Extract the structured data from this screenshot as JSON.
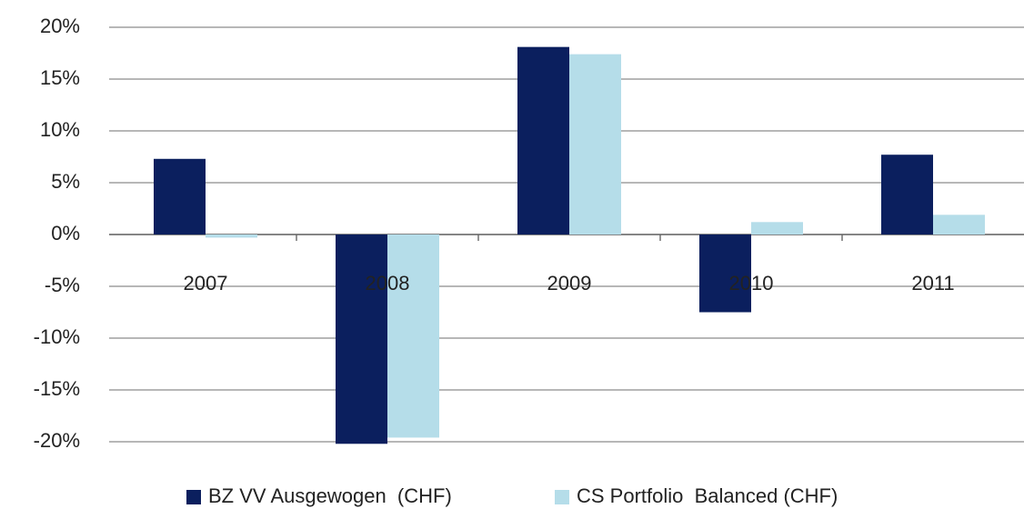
{
  "chart_data": {
    "type": "bar",
    "categories": [
      "2007",
      "2008",
      "2009",
      "2010",
      "2011"
    ],
    "series": [
      {
        "name": "BZ VV Ausgewogen  (CHF)",
        "color": "#0b1f5e",
        "values": [
          7.3,
          -20.2,
          18.1,
          -7.5,
          7.7
        ]
      },
      {
        "name": "CS Portfolio  Balanced (CHF)",
        "color": "#b5dde9",
        "values": [
          -0.3,
          -19.6,
          17.4,
          1.2,
          1.9
        ]
      }
    ],
    "ylim": [
      -20,
      20
    ],
    "yticks": [
      {
        "value": 20,
        "label": "20%"
      },
      {
        "value": 15,
        "label": "15%"
      },
      {
        "value": 10,
        "label": "10%"
      },
      {
        "value": 5,
        "label": "5%"
      },
      {
        "value": 0,
        "label": "0%"
      },
      {
        "value": -5,
        "label": "-5%"
      },
      {
        "value": -10,
        "label": "-10%"
      },
      {
        "value": -15,
        "label": "-15%"
      },
      {
        "value": -20,
        "label": "-20%"
      }
    ],
    "grid": true,
    "legend": "bottom"
  }
}
